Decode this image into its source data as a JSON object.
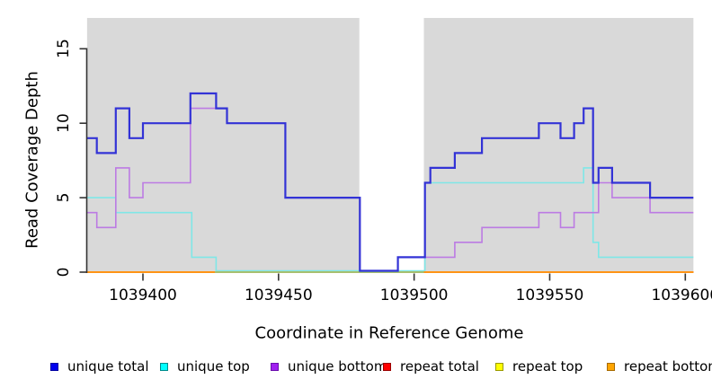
{
  "y_axis": {
    "label": "Read Coverage Depth",
    "tick_values": [
      0,
      5,
      10,
      15
    ],
    "tick_labels": [
      "0",
      "5",
      "10",
      "15"
    ]
  },
  "x_axis": {
    "label": "Coordinate in Reference Genome",
    "tick_values": [
      1039400,
      1039450,
      1039500,
      1039550,
      1039600
    ],
    "tick_labels": [
      "1039400",
      "1039450",
      "1039500",
      "1039550",
      "1039600"
    ]
  },
  "legend": {
    "items": [
      {
        "label": "unique total",
        "fill": "#0000EE",
        "border": "#0000A0"
      },
      {
        "label": "unique top",
        "fill": "#00FFFF",
        "border": "#008B8B"
      },
      {
        "label": "unique bottom",
        "fill": "#A020F0",
        "border": "#6A0DAD"
      },
      {
        "label": "repeat total",
        "fill": "#FF0000",
        "border": "#990000"
      },
      {
        "label": "repeat top",
        "fill": "#FFFF00",
        "border": "#999900"
      },
      {
        "label": "repeat bottom",
        "fill": "#FFA500",
        "border": "#A66A00"
      }
    ]
  },
  "chart_data": {
    "type": "line",
    "subtype": "step",
    "title": "",
    "xlabel": "Coordinate in Reference Genome",
    "ylabel": "Read Coverage Depth",
    "xlim": [
      1039379.4,
      1039603
    ],
    "ylim": [
      0,
      17
    ],
    "grid": false,
    "legend_position": "bottom",
    "background_color": "#FFFFFF",
    "shaded_region_color": "#D9D9D9",
    "shaded_regions": [
      {
        "x1": 1039379.4,
        "x2": 1039479.8
      },
      {
        "x1": 1039503.6,
        "x2": 1039603.0
      }
    ],
    "gap_region": {
      "x1": 1039479.8,
      "x2": 1039503.6
    },
    "series": [
      {
        "name": "repeat top",
        "color": "#FFFF00",
        "width": 1.5,
        "steps": [
          [
            1039379.4,
            0
          ]
        ],
        "end": 1039603
      },
      {
        "name": "repeat total",
        "color": "#CC0000",
        "width": 1.5,
        "steps": [
          [
            1039379.4,
            0
          ]
        ],
        "end": 1039603
      },
      {
        "name": "unique top",
        "color": "#7FE7E7",
        "width": 1.6,
        "steps": [
          [
            1039379.4,
            5
          ],
          [
            1039390,
            4
          ],
          [
            1039418,
            1
          ],
          [
            1039427,
            0
          ],
          [
            1039504,
            6
          ],
          [
            1039562.5,
            7
          ],
          [
            1039566,
            2
          ],
          [
            1039568,
            1
          ]
        ],
        "end": 1039603
      },
      {
        "name": "repeat bottom",
        "color": "#FF9415",
        "width": 2,
        "steps": [
          [
            1039379.4,
            0
          ]
        ],
        "end": 1039603
      },
      {
        "name": "unique bottom",
        "color": "#BC7BE3",
        "width": 1.6,
        "steps": [
          [
            1039379.4,
            4
          ],
          [
            1039383,
            3
          ],
          [
            1039390,
            7
          ],
          [
            1039395,
            5
          ],
          [
            1039400,
            6
          ],
          [
            1039417.5,
            11
          ],
          [
            1039431,
            10
          ],
          [
            1039452.5,
            5
          ],
          [
            1039480,
            0
          ],
          [
            1039494,
            1
          ],
          [
            1039515,
            2
          ],
          [
            1039525,
            3
          ],
          [
            1039546,
            4
          ],
          [
            1039554,
            3
          ],
          [
            1039559,
            4
          ],
          [
            1039568,
            6
          ],
          [
            1039573,
            5
          ],
          [
            1039587,
            4
          ]
        ],
        "end": 1039603
      },
      {
        "name": "unique total",
        "color": "#3333D6",
        "width": 2.2,
        "steps": [
          [
            1039379.4,
            9
          ],
          [
            1039383,
            8
          ],
          [
            1039390,
            11
          ],
          [
            1039395,
            9
          ],
          [
            1039400,
            10
          ],
          [
            1039417.5,
            12
          ],
          [
            1039427,
            11
          ],
          [
            1039431,
            10
          ],
          [
            1039452.5,
            5
          ],
          [
            1039480,
            0
          ],
          [
            1039494,
            1
          ],
          [
            1039504,
            6
          ],
          [
            1039506,
            7
          ],
          [
            1039515,
            8
          ],
          [
            1039525,
            9
          ],
          [
            1039546,
            10
          ],
          [
            1039554,
            9
          ],
          [
            1039559,
            10
          ],
          [
            1039562.5,
            11
          ],
          [
            1039566,
            6
          ],
          [
            1039568,
            7
          ],
          [
            1039573,
            6
          ],
          [
            1039587,
            5
          ]
        ],
        "end": 1039603
      }
    ],
    "overlap_segment": {
      "note": "unique top at depth 0 overlapping repeat bottom renders green",
      "x1": 1039426.5,
      "x2": 1039503.6,
      "y": 0,
      "color": "#8CCD8C",
      "width": 1.6
    }
  }
}
